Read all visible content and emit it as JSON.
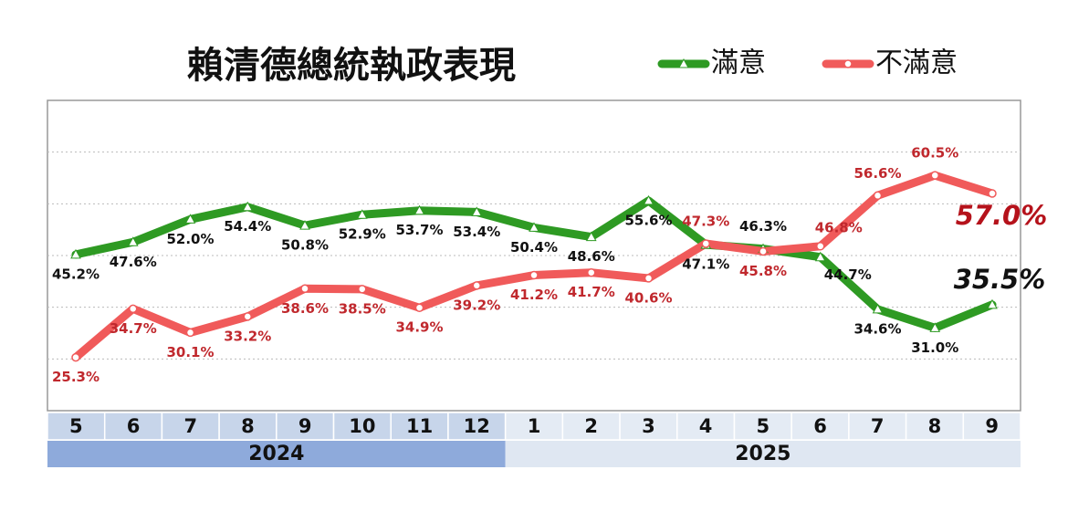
{
  "chart_data": {
    "type": "line",
    "title": "賴清德總統執政表現",
    "categories": [
      "5",
      "6",
      "7",
      "8",
      "9",
      "10",
      "11",
      "12",
      "1",
      "2",
      "3",
      "4",
      "5",
      "6",
      "7",
      "8",
      "9"
    ],
    "groups": [
      {
        "label": "2024",
        "count": 8
      },
      {
        "label": "2025",
        "count": 9
      }
    ],
    "series": [
      {
        "name": "滿意",
        "color": "#2e9a23",
        "marker": "triangle",
        "values": [
          45.2,
          47.6,
          52.0,
          54.4,
          50.8,
          52.9,
          53.7,
          53.4,
          50.4,
          48.6,
          55.6,
          47.1,
          46.3,
          44.7,
          34.6,
          31.0,
          35.5
        ],
        "value_labels": [
          "45.2%",
          "47.6%",
          "52.0%",
          "54.4%",
          "50.8%",
          "52.9%",
          "53.7%",
          "53.4%",
          "50.4%",
          "48.6%",
          "55.6%",
          "47.1%",
          "46.3%",
          "44.7%",
          "34.6%",
          "31.0%",
          "35.5%"
        ]
      },
      {
        "name": "不滿意",
        "color": "#f05a5a",
        "marker": "circle",
        "values": [
          25.3,
          34.7,
          30.1,
          33.2,
          38.6,
          38.5,
          34.9,
          39.2,
          41.2,
          41.7,
          40.6,
          47.3,
          45.8,
          46.8,
          56.6,
          60.5,
          57.0
        ],
        "value_labels": [
          "25.3%",
          "34.7%",
          "30.1%",
          "33.2%",
          "38.6%",
          "38.5%",
          "34.9%",
          "39.2%",
          "41.2%",
          "41.7%",
          "40.6%",
          "47.3%",
          "45.8%",
          "46.8%",
          "56.6%",
          "60.5%",
          "57.0%"
        ]
      }
    ],
    "ylim": [
      15,
      75
    ],
    "grid_values": [
      25,
      35,
      45,
      55,
      65
    ],
    "grid": true,
    "legend": "top-right"
  }
}
